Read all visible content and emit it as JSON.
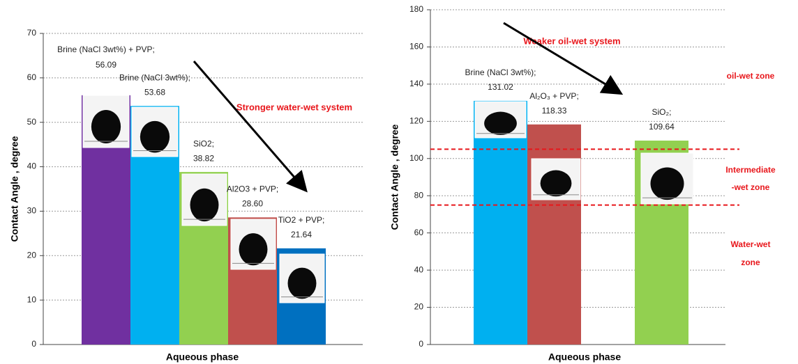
{
  "chart_data": [
    {
      "type": "bar",
      "categories": [
        "Brine (NaCl 3wt%) + PVP;",
        "Brine (NaCl 3wt%);",
        "SiO2;",
        "Al2O3 + PVP;",
        "TiO2 + PVP;"
      ],
      "values": [
        56.09,
        53.68,
        38.82,
        28.6,
        21.64
      ],
      "value_labels": [
        "56.09",
        "53.68",
        "38.82",
        "28.60",
        "21.64"
      ],
      "colors": [
        "#7030a0",
        "#00b0f0",
        "#92d050",
        "#c0504d",
        "#0070c0"
      ],
      "ylim": [
        0,
        70
      ],
      "yticks": [
        0,
        10,
        20,
        30,
        40,
        50,
        60,
        70
      ],
      "grid": true,
      "y_label": "Contact Angle , degree",
      "x_label": "Aqueous phase",
      "annotations": [
        "Stronger water-wet system"
      ]
    },
    {
      "type": "bar",
      "categories": [
        "Brine (NaCl 3wt%);",
        "Al₂O₃ + PVP;",
        null,
        "SiO₂;"
      ],
      "values": [
        131.02,
        118.33,
        null,
        109.64
      ],
      "value_labels": [
        "131.02",
        "118.33",
        null,
        "109.64"
      ],
      "colors": [
        "#00b0f0",
        "#c0504d",
        null,
        "#92d050"
      ],
      "ylim": [
        0,
        180
      ],
      "yticks": [
        0,
        20,
        40,
        60,
        80,
        100,
        120,
        140,
        160,
        180
      ],
      "grid": true,
      "y_label": "Contact Angle , degree",
      "x_label": "Aqueous phase",
      "annotations": [
        "Weaker oil-wet system"
      ],
      "reference_lines": [
        105,
        75
      ],
      "zones": [
        [
          "oil-wet zone"
        ],
        [
          "Intermediate",
          "-wet zone"
        ],
        [
          "Water-wet",
          "zone"
        ]
      ]
    }
  ]
}
